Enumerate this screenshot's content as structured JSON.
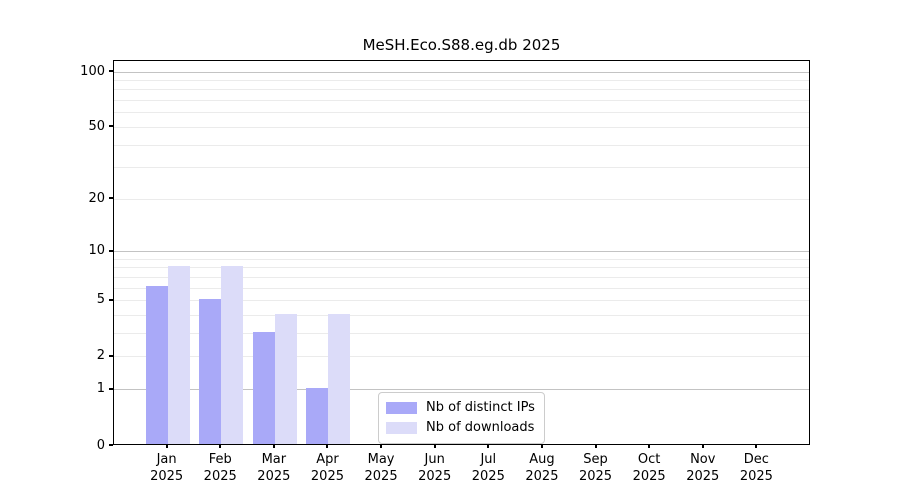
{
  "chart_data": {
    "type": "bar",
    "title": "MeSH.Eco.S88.eg.db 2025",
    "categories": [
      "Jan",
      "Feb",
      "Mar",
      "Apr",
      "May",
      "Jun",
      "Jul",
      "Aug",
      "Sep",
      "Oct",
      "Nov",
      "Dec"
    ],
    "year_label": "2025",
    "series": [
      {
        "name": "Nb of distinct IPs",
        "color": "#a9a9f8",
        "values": [
          6,
          5,
          3,
          1,
          0,
          0,
          0,
          0,
          0,
          0,
          0,
          0
        ]
      },
      {
        "name": "Nb of downloads",
        "color": "#dcdcf9",
        "values": [
          8,
          8,
          4,
          4,
          0,
          0,
          0,
          0,
          0,
          0,
          0,
          0
        ]
      }
    ],
    "y_axis": {
      "scale": "log1p",
      "tick_values": [
        0,
        1,
        2,
        5,
        10,
        20,
        50,
        100
      ],
      "max": 114.7,
      "major_gridline_values": [
        1,
        10,
        100
      ],
      "minor_gridline_values": [
        2,
        3,
        4,
        5,
        6,
        7,
        8,
        9,
        20,
        30,
        40,
        50,
        60,
        70,
        80,
        90
      ]
    },
    "xlabel": "",
    "ylabel": "",
    "grid": true,
    "legend_position": "lower-center-inside"
  },
  "colors": {
    "background": "#ffffff",
    "spine": "#000000",
    "grid_major": "#c3c3c3",
    "grid_minor": "#ebebeb",
    "tick_text": "#000000",
    "legend_border": "#cccccc"
  }
}
